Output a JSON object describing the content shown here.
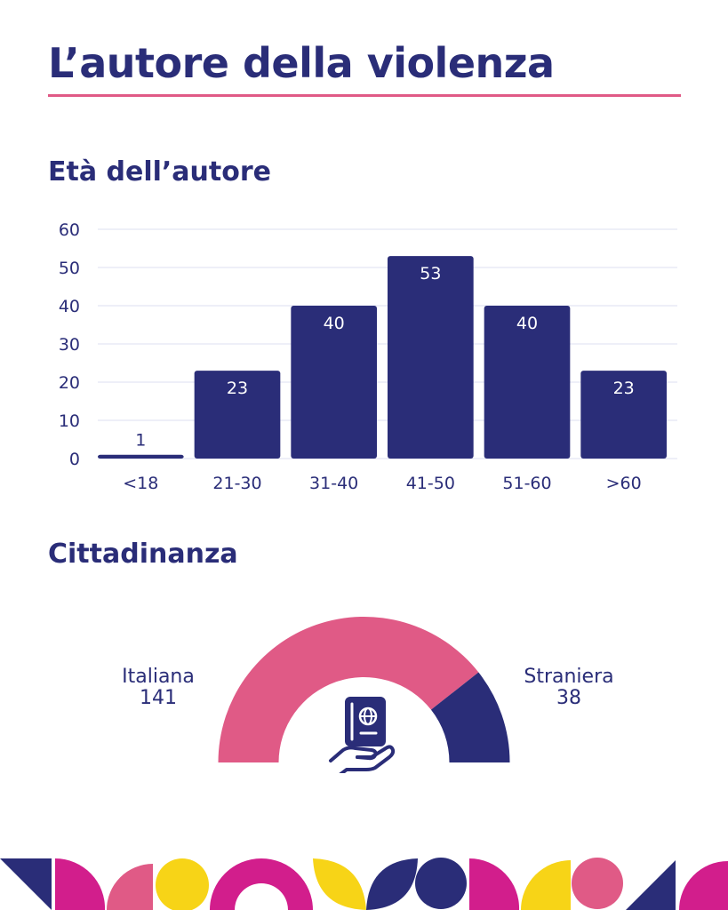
{
  "title": "L’autore della violenza",
  "age_section": {
    "heading": "Età dell’autore"
  },
  "citizenship_section": {
    "heading": "Cittadinanza",
    "icon": "passport-in-hand-icon"
  },
  "colors": {
    "navy": "#2a2d78",
    "pink": "#e05a86",
    "magenta": "#d21e8c",
    "yellow": "#f7d417",
    "gridline": "#dcdff0",
    "white": "#ffffff"
  },
  "chart_data": [
    {
      "type": "bar",
      "title": "Età dell’autore",
      "categories": [
        "<18",
        "21-30",
        "31-40",
        "41-50",
        "51-60",
        ">60"
      ],
      "values": [
        1,
        23,
        40,
        53,
        40,
        23
      ],
      "ylim": [
        0,
        60
      ],
      "yticks": [
        0,
        10,
        20,
        30,
        40,
        50,
        60
      ],
      "xlabel": "",
      "ylabel": "",
      "grid": true
    },
    {
      "type": "pie",
      "variant": "half-donut",
      "title": "Cittadinanza",
      "series": [
        {
          "name": "Italiana",
          "value": 141,
          "label": "141"
        },
        {
          "name": "Straniera",
          "value": 38,
          "label": "38"
        }
      ]
    }
  ]
}
